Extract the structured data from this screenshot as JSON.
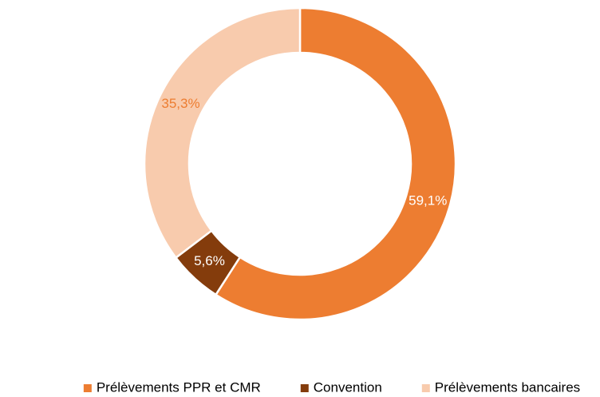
{
  "chart_data": {
    "type": "donut",
    "categories": [
      "Prélèvements PPR et CMR",
      "Convention",
      "Prélèvements bancaires"
    ],
    "values": [
      59.1,
      5.6,
      35.3
    ],
    "value_labels": [
      "59,1%",
      "5,6%",
      "35,3%"
    ],
    "colors": [
      "#ed7d31",
      "#843c0c",
      "#f8cbad"
    ],
    "label_colors": [
      "#ffffff",
      "#ffffff",
      "#ed7d31"
    ],
    "legend": "bottom"
  }
}
